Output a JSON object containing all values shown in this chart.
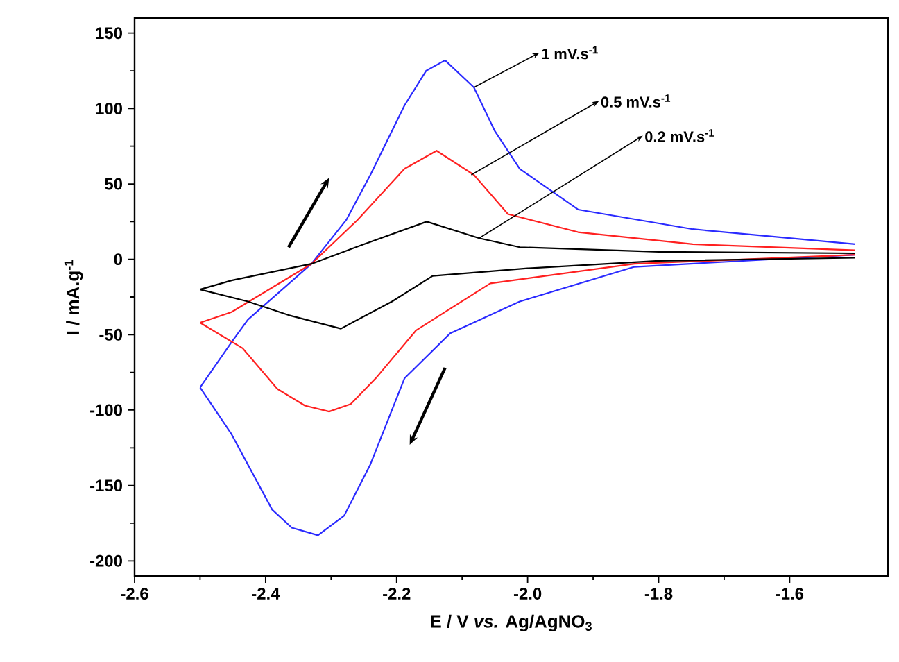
{
  "chart_data": {
    "type": "line",
    "xlabel": "E / V *vs.* Ag/AgNO$_{3}$",
    "ylabel": "I / mA.g$^{-1}$",
    "xlim": [
      -2.6,
      -1.45
    ],
    "ylim": [
      -210,
      160
    ],
    "xticks": [
      -2.6,
      -2.4,
      -2.2,
      {
        "value": -2.0,
        "label": "-2.0"
      },
      -1.8,
      -1.6
    ],
    "yticks": [
      -200,
      -150,
      -100,
      -50,
      0,
      50,
      100,
      150
    ],
    "grid": false,
    "marker": "none",
    "line_style": "solid",
    "series": [
      {
        "color": "#2a2aff",
        "x": [
          -2.5,
          -2.452,
          -2.427,
          -2.33,
          -2.277,
          -2.24,
          -2.188,
          -2.155,
          -2.126,
          -2.082,
          -2.05,
          -2.012,
          -1.923,
          -1.748,
          -1.5
        ],
        "values": [
          -85,
          -55,
          -40,
          -3,
          26,
          56,
          102,
          125,
          132,
          114,
          85,
          60,
          33,
          20,
          10
        ]
      },
      {
        "color": "#2a2aff",
        "x": [
          -1.5,
          -1.837,
          -2.012,
          -2.118,
          -2.188,
          -2.24,
          -2.28,
          -2.32,
          -2.36,
          -2.39,
          -2.452,
          -2.5
        ],
        "values": [
          3,
          -5,
          -28,
          -49,
          -79,
          -136,
          -170,
          -183,
          -178,
          -166,
          -116,
          -85
        ]
      },
      {
        "color": "#ff2020",
        "x": [
          -2.5,
          -2.452,
          -2.33,
          -2.26,
          -2.188,
          -2.139,
          -2.082,
          -2.03,
          -1.923,
          -1.748,
          -1.5
        ],
        "values": [
          -42,
          -35,
          -3,
          26,
          60,
          72,
          56,
          30,
          18,
          10,
          6
        ]
      },
      {
        "color": "#ff2020",
        "x": [
          -1.5,
          -1.837,
          -2.057,
          -2.17,
          -2.232,
          -2.27,
          -2.303,
          -2.34,
          -2.382,
          -2.435,
          -2.5
        ],
        "values": [
          3,
          -3,
          -16,
          -47,
          -79,
          -96,
          -101,
          -97,
          -86,
          -59,
          -42
        ]
      },
      {
        "color": "#000000",
        "x": [
          -2.5,
          -2.452,
          -2.33,
          -2.25,
          -2.154,
          -2.074,
          -2.012,
          -1.8,
          -1.5
        ],
        "values": [
          -20,
          -14,
          -3,
          10,
          25,
          14,
          8,
          5,
          4
        ]
      },
      {
        "color": "#000000",
        "x": [
          -1.5,
          -1.8,
          -2.0,
          -2.145,
          -2.207,
          -2.285,
          -2.365,
          -2.427,
          -2.5
        ],
        "values": [
          1,
          -1,
          -6,
          -11,
          -28,
          -46,
          -37,
          -28,
          -20
        ]
      }
    ],
    "annotations": [
      {
        "text": "1 mV.s$^{-1}$",
        "x": -2.082,
        "y": 114
      },
      {
        "text": "0.5 mV.s$^{-1}$",
        "x": -2.086,
        "y": 56
      },
      {
        "text": "0.2 mV.s$^{-1}$",
        "x": -2.074,
        "y": 14
      }
    ]
  }
}
